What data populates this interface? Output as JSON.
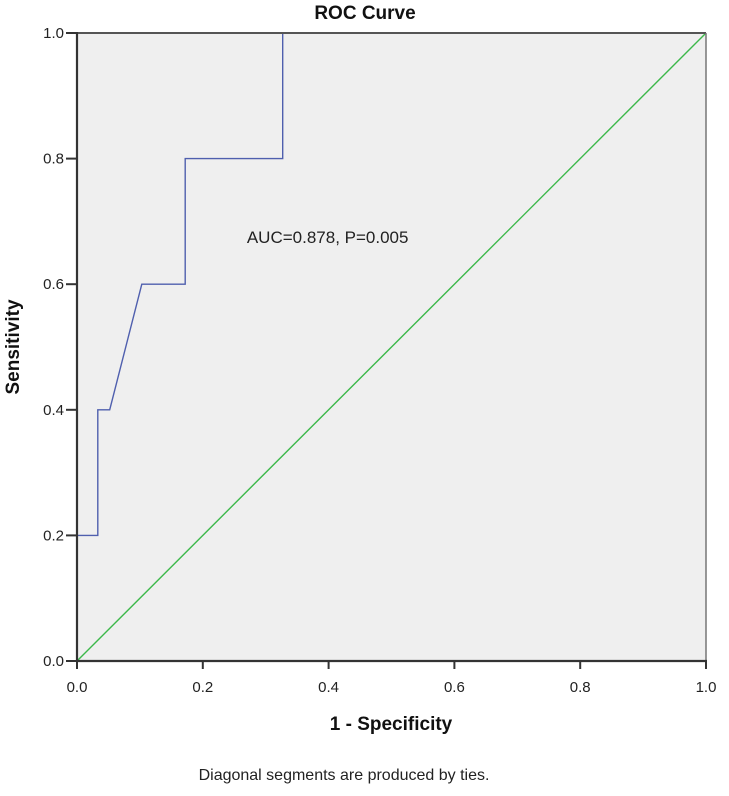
{
  "chart_data": {
    "type": "line",
    "title": "ROC Curve",
    "xlabel": "1 - Specificity",
    "ylabel": "Sensitivity",
    "xlim": [
      0.0,
      1.0
    ],
    "ylim": [
      0.0,
      1.0
    ],
    "x_ticks": [
      "0.0",
      "0.2",
      "0.4",
      "0.6",
      "0.8",
      "1.0"
    ],
    "y_ticks": [
      "0.0",
      "0.2",
      "0.4",
      "0.6",
      "0.8",
      "1.0"
    ],
    "grid": false,
    "legend": null,
    "series": [
      {
        "name": "ROC",
        "color": "#4f5fae",
        "x": [
          0.0,
          0.0,
          0.033,
          0.033,
          0.052,
          0.103,
          0.172,
          0.172,
          0.327,
          0.327,
          1.0
        ],
        "y": [
          0.0,
          0.2,
          0.2,
          0.4,
          0.4,
          0.6,
          0.6,
          0.8,
          0.8,
          1.0,
          1.0
        ]
      },
      {
        "name": "Reference Line",
        "color": "#3cb84a",
        "x": [
          0.0,
          1.0
        ],
        "y": [
          0.0,
          1.0
        ]
      }
    ],
    "annotations": [
      {
        "text": "AUC=0.878, P=0.005",
        "x": 0.27,
        "y": 0.675
      }
    ],
    "footnote": "Diagonal segments are produced by ties.",
    "plot_background": "#efefef"
  }
}
